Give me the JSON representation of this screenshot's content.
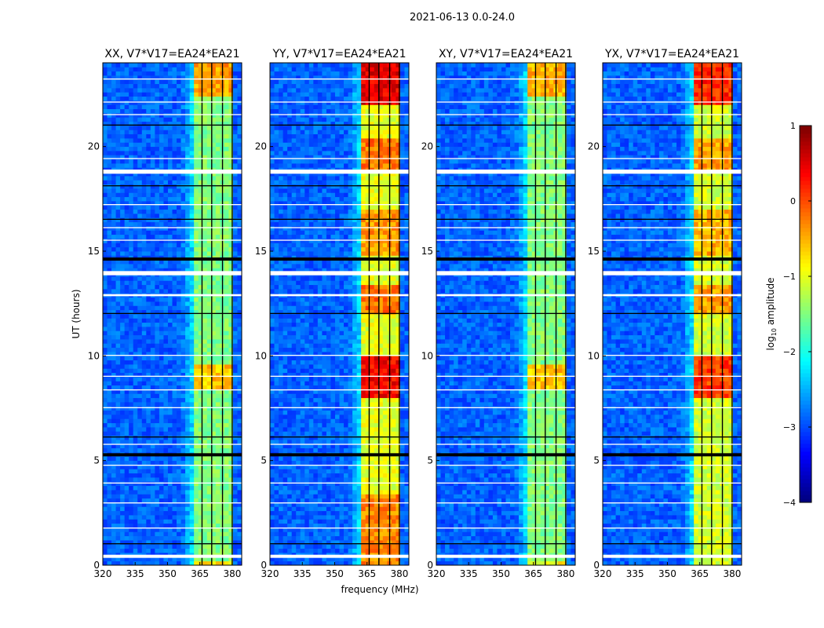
{
  "chart_data": {
    "type": "heatmap",
    "title": "2021-06-13 0.0-24.0",
    "xlabel": "frequency (MHz)",
    "ylabel": "UT (hours)",
    "xlim": [
      320,
      384.4
    ],
    "ylim": [
      0,
      24
    ],
    "xticks": [
      "320",
      "335",
      "350",
      "365",
      "380"
    ],
    "xtick_values": [
      320,
      335,
      350,
      365,
      380
    ],
    "yticks": [
      "0",
      "5",
      "10",
      "15",
      "20"
    ],
    "ytick_values": [
      0,
      5,
      10,
      15,
      20
    ],
    "colorbar": {
      "label": "log10 amplitude",
      "label_base": "log",
      "label_sub": "10",
      "label_rest": " amplitude",
      "range": [
        -4,
        1
      ],
      "ticks": [
        "1",
        "0",
        "−1",
        "−2",
        "−3",
        "−4"
      ],
      "tick_values": [
        1,
        0,
        -1,
        -2,
        -3,
        -4
      ],
      "colormap": "jet"
    },
    "band_mhz": [
      361.5,
      380.5
    ],
    "subband_gaps_mhz": [
      366,
      370.5,
      375.5,
      380
    ],
    "background_level": -2.9,
    "flagged_hours": [
      [
        0.35,
        0.5
      ],
      [
        13.85,
        14.05
      ],
      [
        18.7,
        18.9
      ],
      [
        12.85,
        12.95
      ],
      [
        9.0,
        9.05
      ],
      [
        8.35,
        8.4
      ],
      [
        5.75,
        5.8
      ],
      [
        3.9,
        3.95
      ],
      [
        2.95,
        3.0
      ],
      [
        19.4,
        19.45
      ],
      [
        21.5,
        21.55
      ],
      [
        22.1,
        22.15
      ],
      [
        16.1,
        16.15
      ],
      [
        17.2,
        17.25
      ],
      [
        15.5,
        15.55
      ],
      [
        10.0,
        10.05
      ],
      [
        7.5,
        7.55
      ],
      [
        4.75,
        4.8
      ],
      [
        1.75,
        1.8
      ],
      [
        23.2,
        23.25
      ]
    ],
    "dead_hours": [
      [
        14.55,
        14.7
      ],
      [
        5.2,
        5.35
      ],
      [
        12.0,
        12.05
      ],
      [
        21.0,
        21.05
      ],
      [
        18.1,
        18.15
      ],
      [
        1.0,
        1.05
      ],
      [
        6.1,
        6.15
      ],
      [
        16.5,
        16.55
      ]
    ],
    "panels": [
      {
        "name": "XX, V7*V17=EA24*EA21",
        "band_level": -1.5,
        "hot": [
          [
            22.5,
            24,
            -0.4
          ],
          [
            8.5,
            9.7,
            -0.6
          ],
          [
            0.0,
            0.3,
            -0.8
          ]
        ]
      },
      {
        "name": "YY, V7*V17=EA24*EA21",
        "band_level": -1.0,
        "hot": [
          [
            22,
            24,
            0.5
          ],
          [
            8.0,
            10,
            0.4
          ],
          [
            18.8,
            20.5,
            -0.2
          ],
          [
            12,
            13.5,
            -0.2
          ],
          [
            0,
            3.5,
            -0.3
          ],
          [
            14.8,
            17,
            -0.4
          ]
        ]
      },
      {
        "name": "XY, V7*V17=EA24*EA21",
        "band_level": -1.5,
        "hot": [
          [
            22.5,
            24,
            -0.5
          ],
          [
            8.5,
            9.7,
            -0.6
          ],
          [
            0.0,
            0.3,
            -0.9
          ]
        ]
      },
      {
        "name": "YX, V7*V17=EA24*EA21",
        "band_level": -1.1,
        "hot": [
          [
            22,
            24,
            0.2
          ],
          [
            8.0,
            10,
            0.1
          ],
          [
            18.8,
            20.5,
            -0.4
          ],
          [
            12,
            13.5,
            -0.4
          ],
          [
            14.8,
            17,
            -0.5
          ]
        ]
      }
    ]
  }
}
